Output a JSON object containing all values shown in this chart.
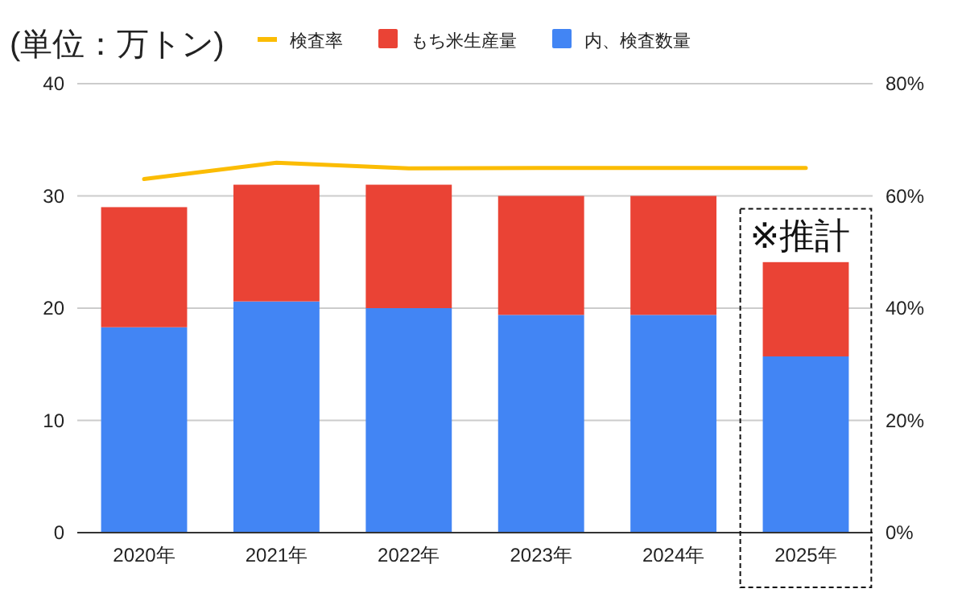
{
  "chart_data": {
    "type": "bar",
    "title": "(単位：万トン)",
    "categories": [
      "2020年",
      "2021年",
      "2022年",
      "2023年",
      "2024年",
      "2025年"
    ],
    "stacked": true,
    "legend": "top",
    "grid": "y",
    "series": [
      {
        "name": "検査率",
        "type": "line",
        "axis": "y2",
        "color": "#fbbc04",
        "values": [
          63.0,
          65.9,
          64.9,
          65.0,
          65.0,
          65.0
        ]
      },
      {
        "name": "内、検査数量",
        "color": "#4285f4",
        "values": [
          18.3,
          20.6,
          20.0,
          19.4,
          19.4,
          15.7
        ]
      },
      {
        "name": "もち米生産量",
        "color": "#ea4335",
        "values": [
          10.7,
          10.4,
          11.0,
          10.6,
          10.6,
          8.4
        ]
      }
    ],
    "ylim": [
      0,
      40
    ],
    "yticks": [
      0,
      10,
      20,
      30,
      40
    ],
    "y2lim": [
      0,
      80
    ],
    "y2ticks": [
      {
        "value": 0,
        "label": "0%"
      },
      {
        "value": 20,
        "label": "20%"
      },
      {
        "value": 40,
        "label": "40%"
      },
      {
        "value": 60,
        "label": "60%"
      },
      {
        "value": 80,
        "label": "80%"
      }
    ],
    "annotations": [
      "※推計"
    ]
  }
}
